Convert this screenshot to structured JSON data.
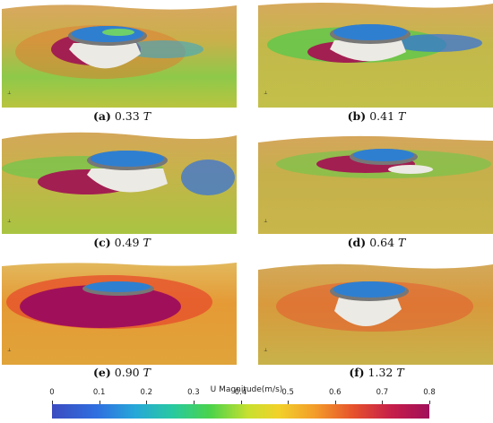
{
  "panels": [
    {
      "label": "(a)",
      "value": "0.33",
      "unit": "T"
    },
    {
      "label": "(b)",
      "value": "0.41",
      "unit": "T"
    },
    {
      "label": "(c)",
      "value": "0.49",
      "unit": "T"
    },
    {
      "label": "(d)",
      "value": "0.64",
      "unit": "T"
    },
    {
      "label": "(e)",
      "value": "0.90",
      "unit": "T"
    },
    {
      "label": "(f)",
      "value": "1.32",
      "unit": "T"
    }
  ],
  "colorbar": {
    "title": "U Magnitude(m/s)",
    "ticks": [
      "0",
      "0.1",
      "0.2",
      "0.3",
      "0.4",
      "0.5",
      "0.6",
      "0.7",
      "0.8"
    ],
    "range": [
      0,
      0.8
    ],
    "colors": [
      "#3b4cc0",
      "#27a7d8",
      "#4cd34a",
      "#f2d22a",
      "#e5512c",
      "#a0105a"
    ]
  }
}
